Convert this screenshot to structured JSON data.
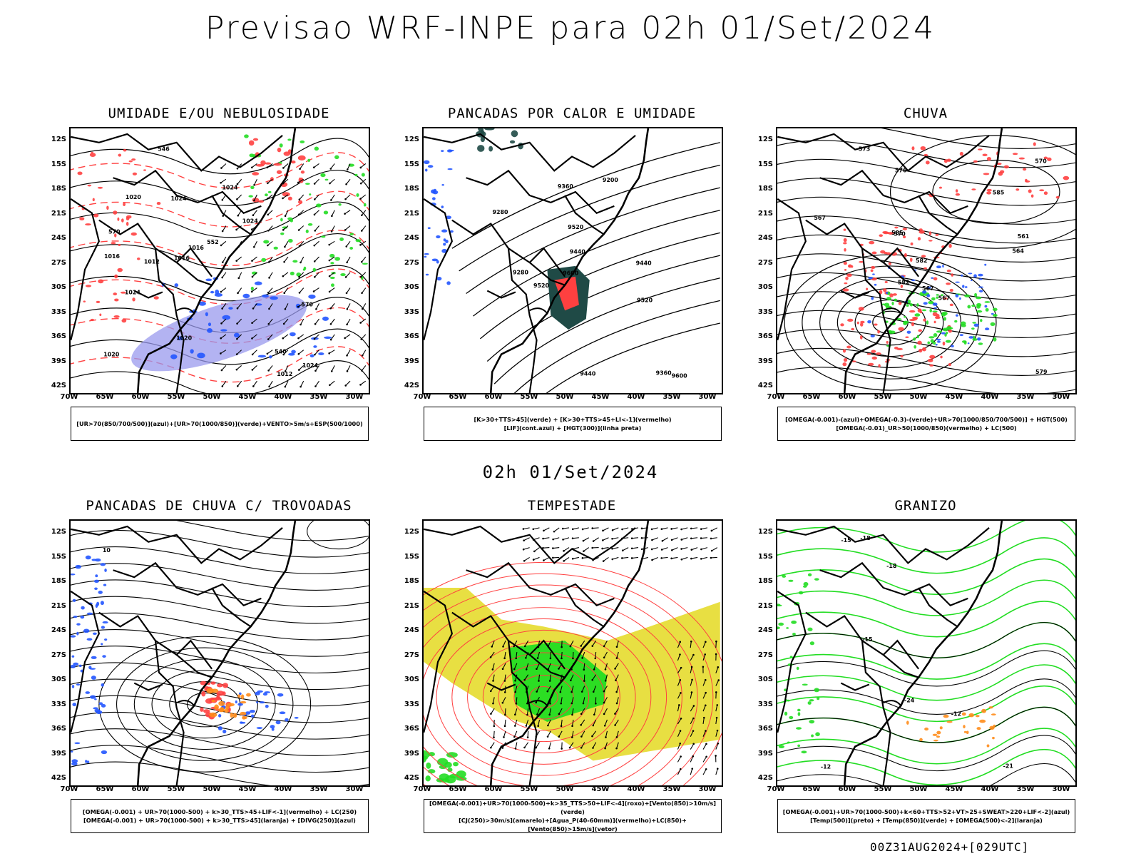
{
  "header": {
    "title": "Previsao WRF-INPE  para 02h 01/Set/2024",
    "subtitle": "02h 01/Set/2024",
    "footer": "00Z31AUG2024+[029UTC]"
  },
  "axes": {
    "lat_labels": [
      "12S",
      "15S",
      "18S",
      "21S",
      "24S",
      "27S",
      "30S",
      "33S",
      "36S",
      "39S",
      "42S"
    ],
    "lon_labels": [
      "70W",
      "65W",
      "60W",
      "55W",
      "50W",
      "45W",
      "40W",
      "35W",
      "30W"
    ]
  },
  "colors": {
    "red": "#ff4040",
    "green": "#22dd22",
    "blue": "#2255ff",
    "lavender": "#9999ee",
    "orange": "#ff8c1a",
    "yellow": "#e6dc2e",
    "darkteal": "#1f4a46",
    "black": "#000000"
  },
  "panels": [
    {
      "id": "umidade",
      "title": "UMIDADE E/OU NEBULOSIDADE",
      "legend": [
        "[UR>70(850/700/500)](azul)+[UR>70(1000/850)](verde)+VENTO>5m/s+ESP(500/1000)"
      ],
      "contour_labels": [
        "1012",
        "1016",
        "1020",
        "1024",
        "1024",
        "1016",
        "1020",
        "1024",
        "1012",
        "1016",
        "1020",
        "1024",
        "1024",
        "570",
        "570",
        "552",
        "546",
        "540"
      ]
    },
    {
      "id": "pancadas-calor",
      "title": "PANCADAS POR CALOR E UMIDADE",
      "legend": [
        "[K>30+TTS>45](verde) + [K>30+TTS>45+LI<-1](vermelho)",
        "[LIF](cont.azul) + [HGT(300)](linha preta)"
      ],
      "contour_labels": [
        "9520",
        "9600",
        "9520",
        "9440",
        "9440",
        "9600",
        "9520",
        "9440",
        "9360",
        "9280",
        "9360",
        "9280",
        "9200"
      ]
    },
    {
      "id": "chuva",
      "title": "CHUVA",
      "legend": [
        "[OMEGA(-0.001)-(azul)+OMEGA(-0.3)-(verde)+UR>70(1000/850/700/500)] + HGT(500)",
        "[OMEGA(-0.01)_UR>50(1000/850)(vermelho) + LC(500)"
      ],
      "contour_labels": [
        "585",
        "582",
        "576",
        "573",
        "570",
        "567",
        "585",
        "582",
        "579",
        "567",
        "564",
        "561",
        "570",
        "567"
      ]
    },
    {
      "id": "pancadas-trovoadas",
      "title": "PANCADAS DE CHUVA C/ TROVOADAS",
      "legend": [
        "[OMEGA(-0.001) + UR>70(1000-500) + k>30_TTS>45+LIF<-1](vermelho) + LC(250)",
        "[OMEGA(-0.001) + UR>70(1000-500) + k>30_TTS>45](laranja) + [DIVG(250)](azul)"
      ],
      "contour_labels": [
        "10"
      ]
    },
    {
      "id": "tempestade",
      "title": "TEMPESTADE",
      "legend": [
        "[OMEGA(-0.001)+UR>70(1000-500)+k>35_TTS>50+LIF<-4](roxo)+[Vento(850)>10m/s](verde)",
        "[CJ(250)>30m/s](amarelo)+[Agua_P(40-60mm)](vermelho)+LC(850)+[Vento(850)>15m/s](vetor)"
      ],
      "contour_labels": []
    },
    {
      "id": "granizo",
      "title": "GRANIZO",
      "legend": [
        "[OMEGA(-0.001)+UR>70(1000-500)+k<60+TTS>52+VT>25+SWEAT>220+LIF<-2](azul)",
        "[Temp(500)](preto) + [Temp(850)](verde) + [OMEGA(500)<-2](laranja)"
      ],
      "contour_labels": [
        "-12",
        "-15",
        "-15",
        "-18",
        "-18",
        "-21",
        "-24",
        "-12"
      ]
    }
  ]
}
